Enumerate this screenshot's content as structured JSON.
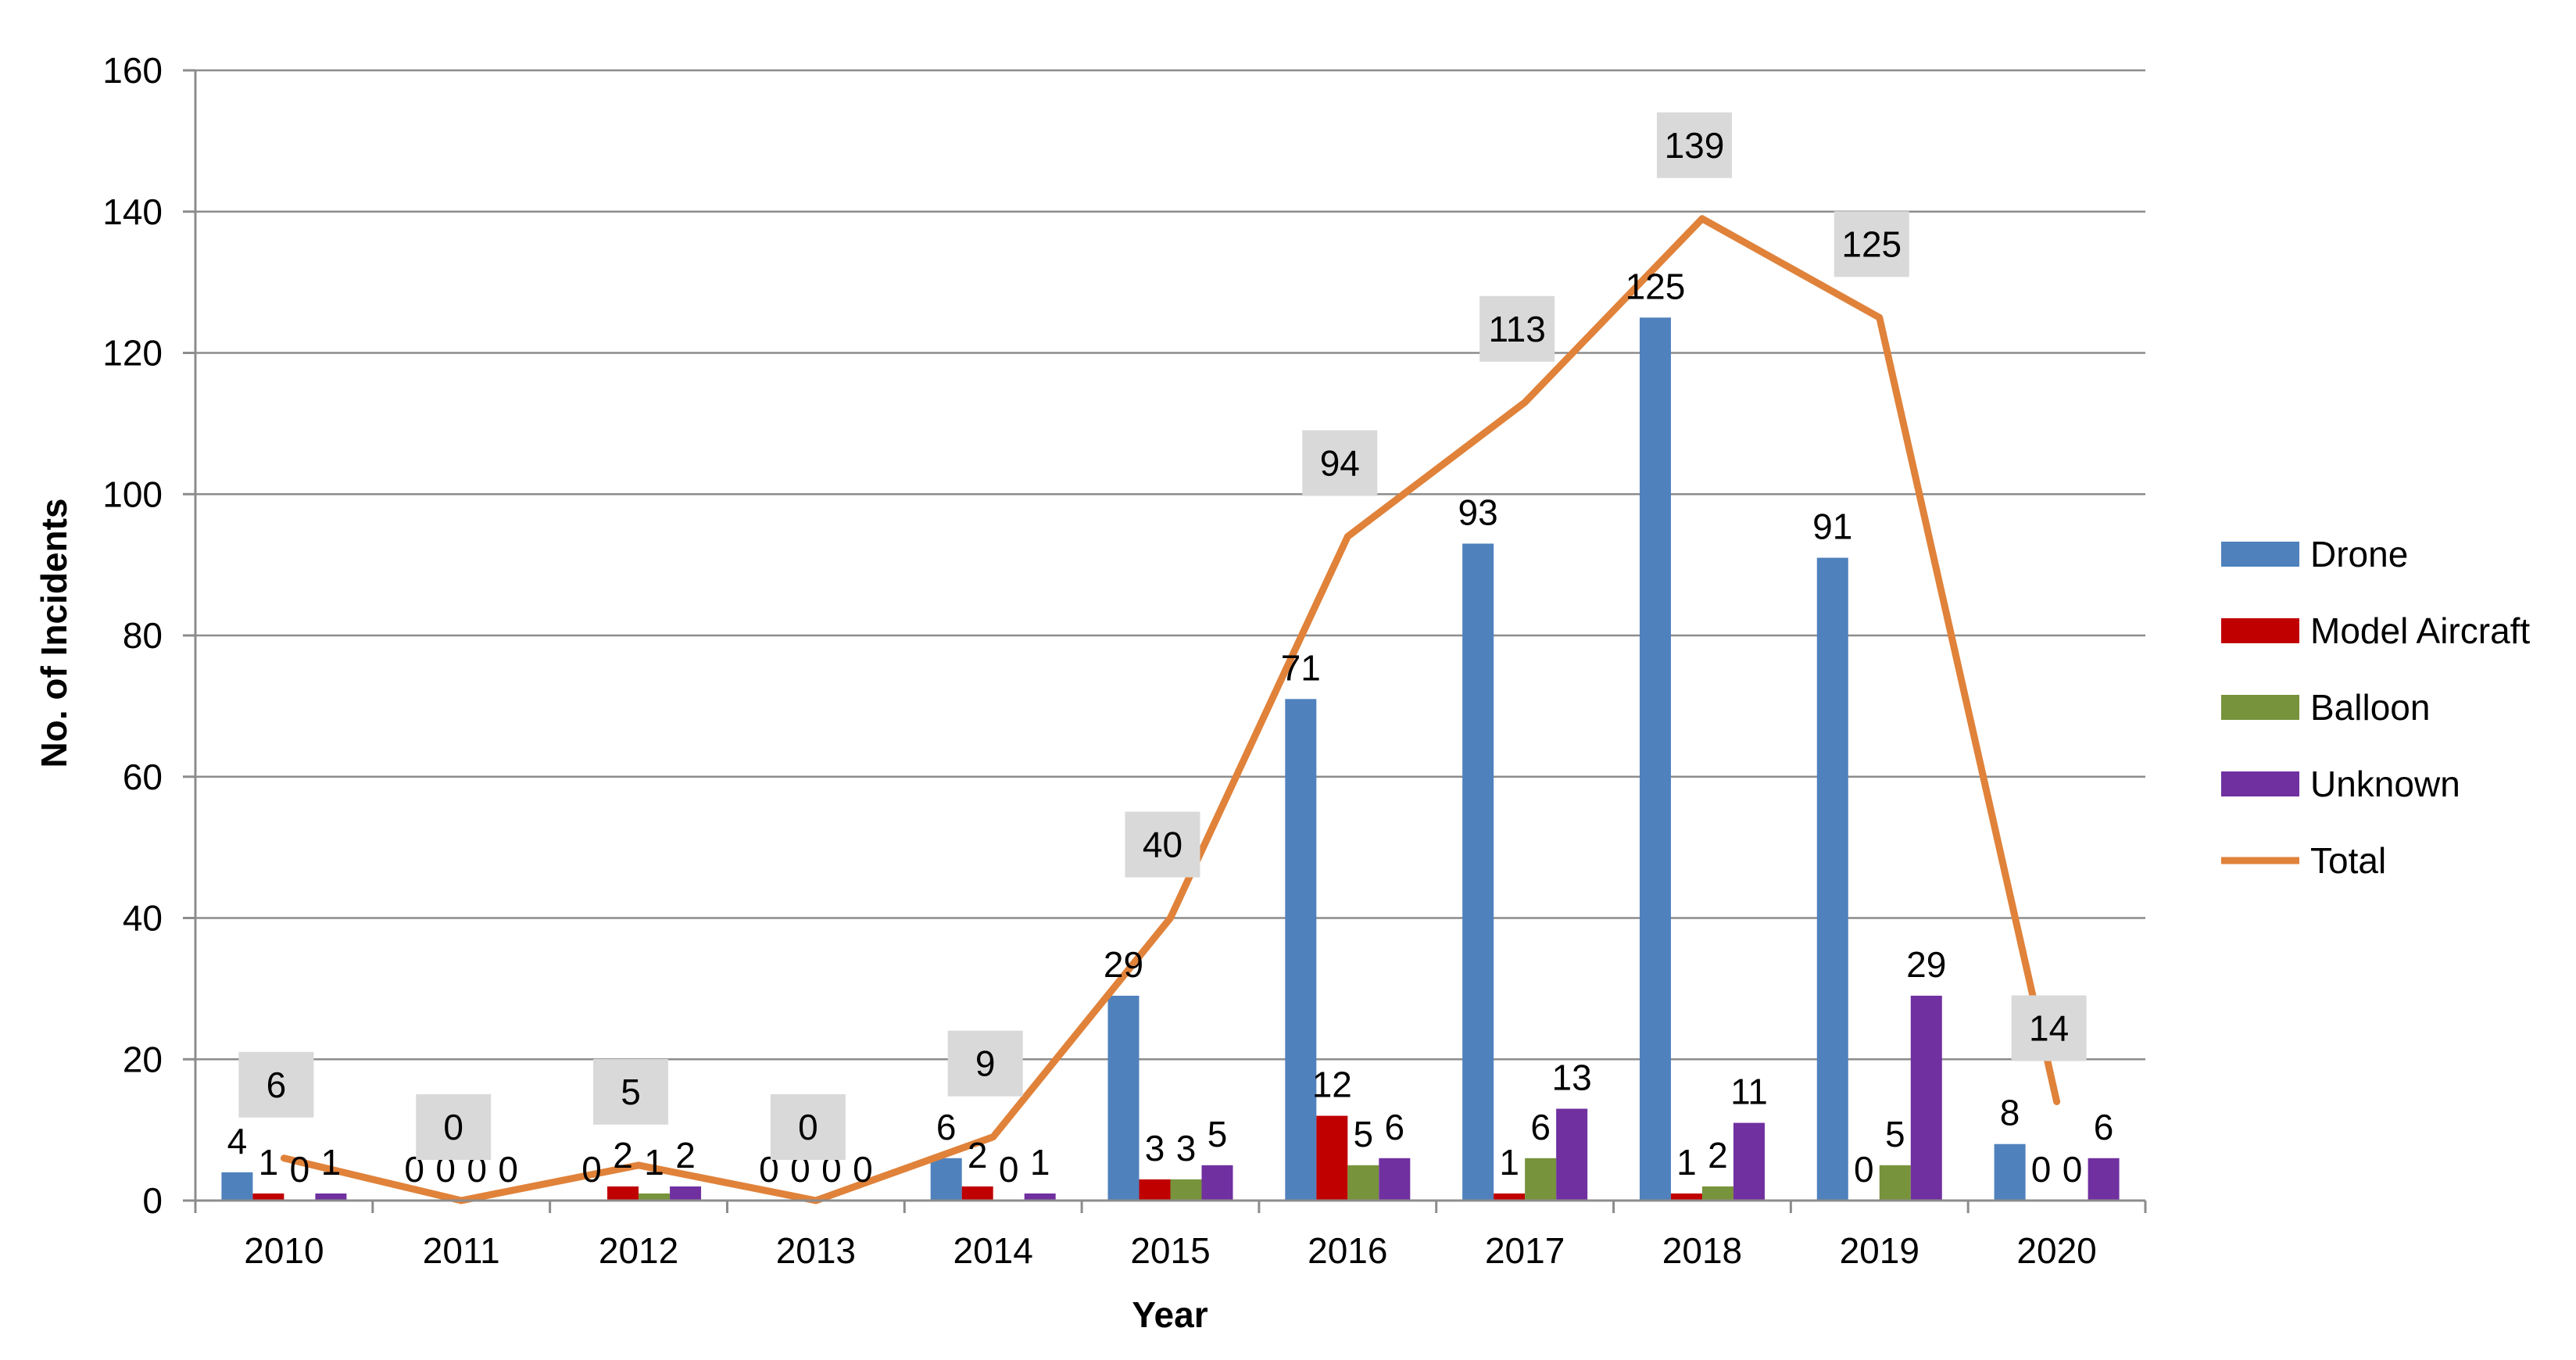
{
  "chart_data": {
    "type": "bar",
    "title": "",
    "xlabel": "Year",
    "ylabel": "No. of Incidents",
    "ylim": [
      0,
      160
    ],
    "yticks": [
      0,
      20,
      40,
      60,
      80,
      100,
      120,
      140,
      160
    ],
    "grid": true,
    "legend_position": "right",
    "categories": [
      "2010",
      "2011",
      "2012",
      "2013",
      "2014",
      "2015",
      "2016",
      "2017",
      "2018",
      "2019",
      "2020"
    ],
    "series": [
      {
        "name": "Drone",
        "kind": "bar",
        "color": "#4f81bd",
        "values": [
          4,
          0,
          0,
          0,
          6,
          29,
          71,
          93,
          125,
          91,
          8
        ]
      },
      {
        "name": "Model Aircraft",
        "kind": "bar",
        "color": "#c00000",
        "values": [
          1,
          0,
          2,
          0,
          2,
          3,
          12,
          1,
          1,
          0,
          0
        ]
      },
      {
        "name": "Balloon",
        "kind": "bar",
        "color": "#77933c",
        "values": [
          0,
          0,
          1,
          0,
          0,
          3,
          5,
          6,
          2,
          5,
          0
        ]
      },
      {
        "name": "Unknown",
        "kind": "bar",
        "color": "#7030a0",
        "values": [
          1,
          0,
          2,
          0,
          1,
          5,
          6,
          13,
          11,
          29,
          6
        ]
      },
      {
        "name": "Total",
        "kind": "line",
        "color": "#e0823a",
        "values": [
          6,
          0,
          5,
          0,
          9,
          40,
          94,
          113,
          139,
          125,
          14
        ]
      }
    ]
  }
}
